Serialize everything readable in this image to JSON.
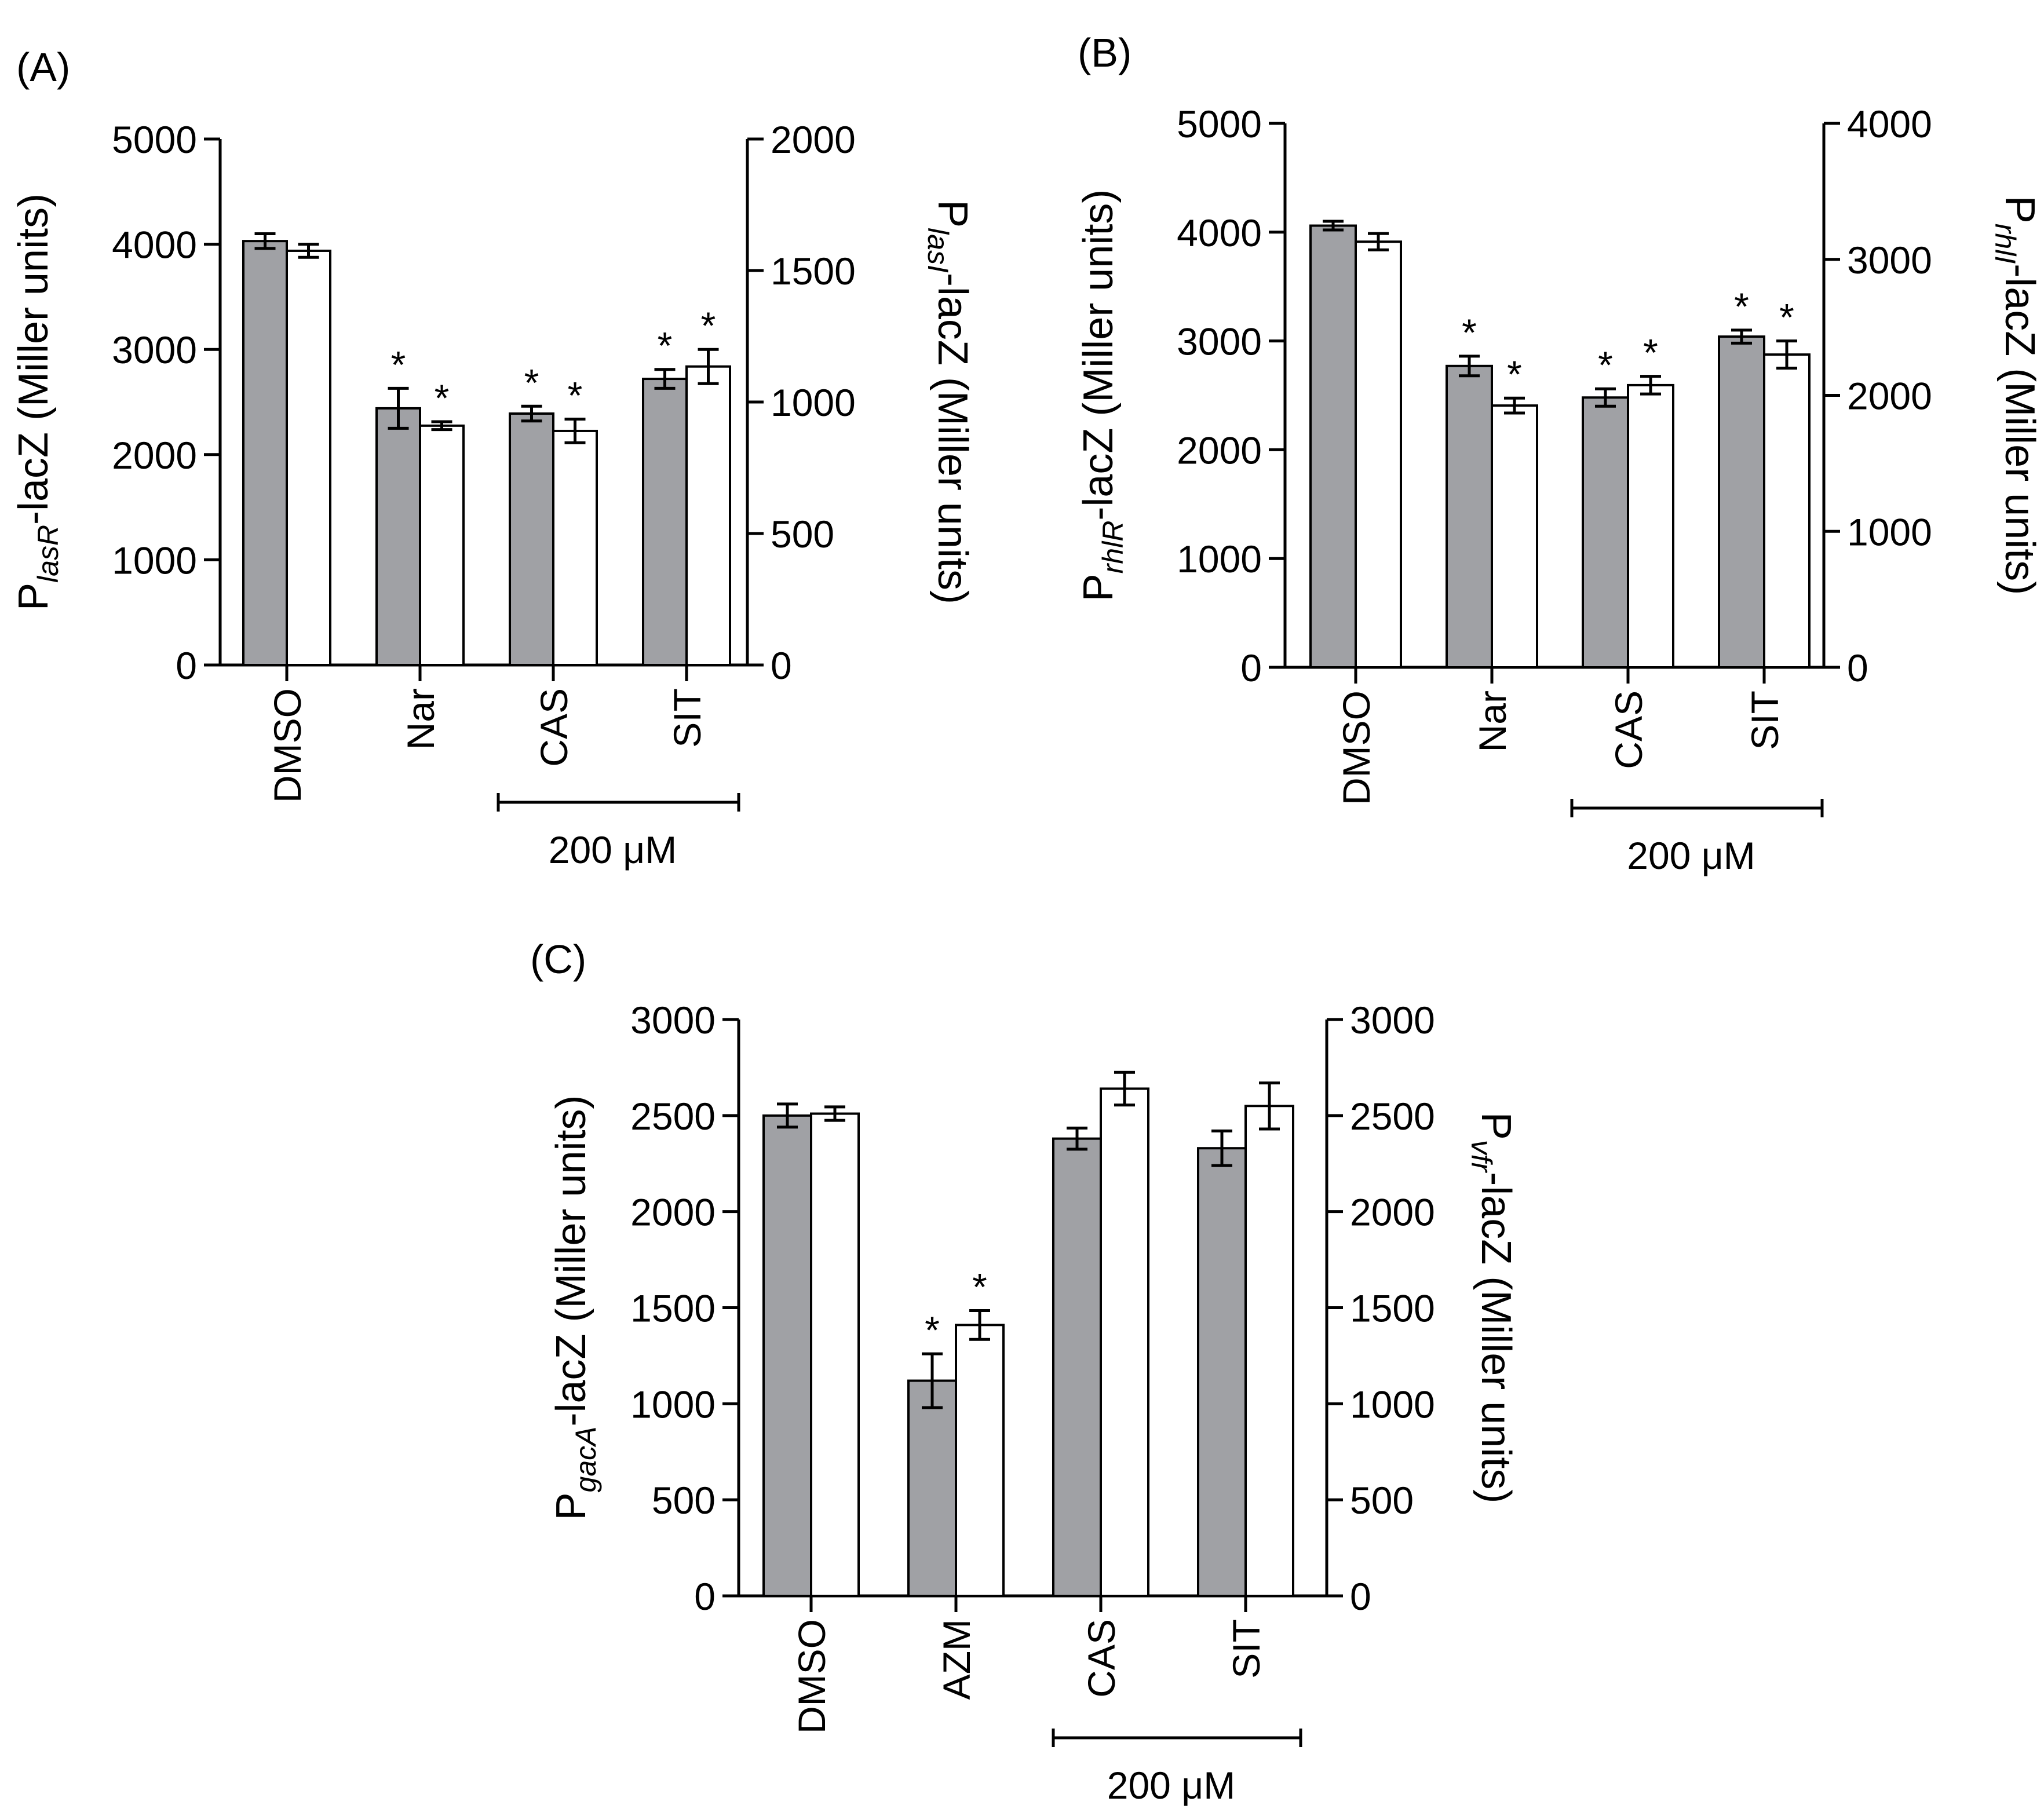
{
  "chart_data": [
    {
      "type": "bar",
      "panel_label": "(A)",
      "categories": [
        "DMSO",
        "Nar",
        "CAS",
        "SIT"
      ],
      "ylim_left": [
        0,
        5000
      ],
      "ylim_right": [
        0,
        2000
      ],
      "yticks_left": [
        "0",
        "1000",
        "2000",
        "3000",
        "4000",
        "5000"
      ],
      "yticks_right": [
        "0",
        "500",
        "1000",
        "1500",
        "2000"
      ],
      "ylabel_left": {
        "pre": "P",
        "sub": "lasR",
        "post": "-lacZ (Miller units)"
      },
      "ylabel_right": {
        "pre": "P",
        "sub": "lasI",
        "post": "-lacZ (Miller units)"
      },
      "series": [
        {
          "name": "left axis (gray)",
          "axis": "left",
          "color": "#a0a1a5",
          "values": [
            4030,
            2440,
            2390,
            2720
          ],
          "errors": [
            70,
            190,
            70,
            90
          ],
          "significant": [
            false,
            true,
            true,
            true
          ]
        },
        {
          "name": "right axis (white)",
          "axis": "right",
          "color": "#ffffff",
          "values": [
            1575,
            910,
            890,
            1135
          ],
          "errors": [
            25,
            15,
            45,
            65
          ],
          "significant": [
            false,
            true,
            true,
            true
          ]
        }
      ],
      "bracket": {
        "label": "200 μM",
        "from": 2,
        "to": 3
      },
      "star": "*"
    },
    {
      "type": "bar",
      "panel_label": "(B)",
      "categories": [
        "DMSO",
        "Nar",
        "CAS",
        "SIT"
      ],
      "ylim_left": [
        0,
        5000
      ],
      "ylim_right": [
        0,
        4000
      ],
      "yticks_left": [
        "0",
        "1000",
        "2000",
        "3000",
        "4000",
        "5000"
      ],
      "yticks_right": [
        "0",
        "1000",
        "2000",
        "3000",
        "4000"
      ],
      "ylabel_left": {
        "pre": "P",
        "sub": "rhlR",
        "post": "-lacZ (Miller units)"
      },
      "ylabel_right": {
        "pre": "P",
        "sub": "rhlI",
        "post": "-lacZ (Miller units)"
      },
      "series": [
        {
          "name": "left axis (gray)",
          "axis": "left",
          "color": "#a0a1a5",
          "values": [
            4060,
            2770,
            2480,
            3040
          ],
          "errors": [
            40,
            90,
            80,
            60
          ],
          "significant": [
            false,
            true,
            true,
            true
          ]
        },
        {
          "name": "right axis (white)",
          "axis": "right",
          "color": "#ffffff",
          "values": [
            3130,
            1925,
            2075,
            2300
          ],
          "errors": [
            60,
            55,
            65,
            100
          ],
          "significant": [
            false,
            true,
            true,
            true
          ]
        }
      ],
      "bracket": {
        "label": "200 μM",
        "from": 2,
        "to": 3
      },
      "star": "*"
    },
    {
      "type": "bar",
      "panel_label": "(C)",
      "categories": [
        "DMSO",
        "AZM",
        "CAS",
        "SIT"
      ],
      "ylim_left": [
        0,
        3000
      ],
      "ylim_right": [
        0,
        3000
      ],
      "yticks_left": [
        "0",
        "500",
        "1000",
        "1500",
        "2000",
        "2500",
        "3000"
      ],
      "yticks_right": [
        "0",
        "500",
        "1000",
        "1500",
        "2000",
        "2500",
        "3000"
      ],
      "ylabel_left": {
        "pre": "P",
        "sub": "gacA",
        "post": "-lacZ (Miller units)"
      },
      "ylabel_right": {
        "pre": "P",
        "sub": "vfr",
        "post": "-lacZ (Miller units)"
      },
      "series": [
        {
          "name": "left axis (gray)",
          "axis": "left",
          "color": "#a0a1a5",
          "values": [
            2500,
            1120,
            2380,
            2330
          ],
          "errors": [
            60,
            140,
            55,
            90
          ],
          "significant": [
            false,
            true,
            false,
            false
          ]
        },
        {
          "name": "right axis (white)",
          "axis": "right",
          "color": "#ffffff",
          "values": [
            2510,
            1410,
            2640,
            2550
          ],
          "errors": [
            35,
            75,
            85,
            120
          ],
          "significant": [
            false,
            true,
            false,
            false
          ]
        }
      ],
      "bracket": {
        "label": "200 μM",
        "from": 2,
        "to": 3
      },
      "star": "*"
    }
  ]
}
